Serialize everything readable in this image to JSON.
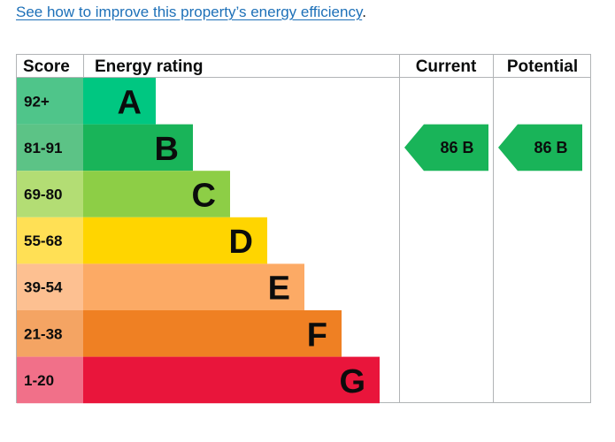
{
  "link": {
    "text": "See how to improve this property’s energy efficiency",
    "suffix": "."
  },
  "chart_data": {
    "type": "table",
    "headers": {
      "score": "Score",
      "rating": "Energy rating",
      "current": "Current",
      "potential": "Potential"
    },
    "bands": [
      {
        "letter": "A",
        "range": "92+",
        "color": "#00c781",
        "score_bg": "#19b459"
      },
      {
        "letter": "B",
        "range": "81-91",
        "color": "#19b459",
        "score_bg": "#19b459"
      },
      {
        "letter": "C",
        "range": "69-80",
        "color": "#8dce46",
        "score_bg": "#8dce46"
      },
      {
        "letter": "D",
        "range": "55-68",
        "color": "#ffd500",
        "score_bg": "#ffd500"
      },
      {
        "letter": "E",
        "range": "39-54",
        "color": "#fcaa65",
        "score_bg": "#fcaa65"
      },
      {
        "letter": "F",
        "range": "21-38",
        "color": "#ef8023",
        "score_bg": "#ef8023"
      },
      {
        "letter": "G",
        "range": "1-20",
        "color": "#e9153b",
        "score_bg": "#e9153b"
      }
    ],
    "current": {
      "value": 86,
      "band": "B",
      "label": "86  B",
      "color": "#19b459"
    },
    "potential": {
      "value": 86,
      "band": "B",
      "label": "86  B",
      "color": "#19b459"
    }
  }
}
